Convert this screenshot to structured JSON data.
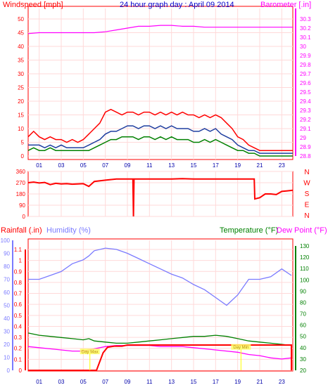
{
  "chart_data": [
    {
      "type": "line",
      "title": "24 hour graph day : April 09 2014",
      "left_axis_label": "Windspeed [mph]",
      "right_axis_label": "Barometer [.in]",
      "x_ticks": [
        "01",
        "03",
        "05",
        "07",
        "09",
        "11",
        "13",
        "15",
        "17",
        "19",
        "21",
        "23"
      ],
      "left_ticks": [
        "0",
        "5",
        "10",
        "15",
        "20",
        "25",
        "30",
        "35",
        "40",
        "45",
        "50"
      ],
      "right_ticks": [
        "28.8",
        "28.9",
        "29",
        "29.1",
        "29.2",
        "29.3",
        "29.4",
        "29.5",
        "29.6",
        "29.7",
        "29.8",
        "29.9",
        "30",
        "30.1",
        "30.2",
        "30.3"
      ],
      "xlim": [
        0,
        24
      ],
      "ylim_left": [
        0,
        50
      ],
      "ylim_right": [
        28.8,
        30.3
      ],
      "series": [
        {
          "color": "#ff0000",
          "axis": "left",
          "x": [
            0,
            0.5,
            1,
            1.5,
            2,
            2.5,
            3,
            3.5,
            4,
            4.5,
            5,
            5.5,
            6,
            6.5,
            7,
            7.5,
            8,
            8.5,
            9,
            9.5,
            10,
            10.5,
            11,
            11.5,
            12,
            12.5,
            13,
            13.5,
            14,
            14.5,
            15,
            15.5,
            16,
            16.5,
            17,
            17.5,
            18,
            18.5,
            19,
            19.5,
            20,
            20.5,
            21,
            21.5,
            22,
            22.5,
            23,
            23.5,
            24
          ],
          "values": [
            7,
            9,
            7,
            6,
            7,
            6,
            6,
            5,
            6,
            5,
            6,
            8,
            10,
            12,
            16,
            17,
            16,
            15,
            16,
            16,
            15,
            16,
            16,
            15,
            16,
            15,
            16,
            15,
            16,
            15,
            15,
            14,
            15,
            14,
            15,
            14,
            12,
            10,
            7,
            6,
            4,
            3,
            2,
            2,
            2,
            2,
            2,
            2,
            2
          ]
        },
        {
          "color": "#1f3fa0",
          "axis": "left",
          "x": [
            0,
            0.5,
            1,
            1.5,
            2,
            2.5,
            3,
            3.5,
            4,
            4.5,
            5,
            5.5,
            6,
            6.5,
            7,
            7.5,
            8,
            8.5,
            9,
            9.5,
            10,
            10.5,
            11,
            11.5,
            12,
            12.5,
            13,
            13.5,
            14,
            14.5,
            15,
            15.5,
            16,
            16.5,
            17,
            17.5,
            18,
            18.5,
            19,
            19.5,
            20,
            20.5,
            21,
            21.5,
            22,
            22.5,
            23,
            23.5,
            24
          ],
          "values": [
            4,
            4,
            4,
            3,
            4,
            3,
            4,
            3,
            3,
            3,
            3,
            4,
            5,
            6,
            8,
            9,
            9,
            10,
            11,
            11,
            10,
            11,
            11,
            10,
            11,
            10,
            11,
            10,
            10,
            10,
            9,
            9,
            10,
            9,
            10,
            8,
            7,
            6,
            4,
            3,
            2,
            2,
            1,
            1,
            1,
            1,
            1,
            1,
            1
          ]
        },
        {
          "color": "#008000",
          "axis": "left",
          "x": [
            0,
            0.5,
            1,
            1.5,
            2,
            2.5,
            3,
            3.5,
            4,
            4.5,
            5,
            5.5,
            6,
            6.5,
            7,
            7.5,
            8,
            8.5,
            9,
            9.5,
            10,
            10.5,
            11,
            11.5,
            12,
            12.5,
            13,
            13.5,
            14,
            14.5,
            15,
            15.5,
            16,
            16.5,
            17,
            17.5,
            18,
            18.5,
            19,
            19.5,
            20,
            20.5,
            21,
            21.5,
            22,
            22.5,
            23,
            23.5,
            24
          ],
          "values": [
            2,
            3,
            2,
            2,
            3,
            2,
            2,
            2,
            2,
            2,
            2,
            2,
            3,
            4,
            5,
            6,
            6,
            7,
            7,
            7,
            6,
            7,
            7,
            6,
            7,
            6,
            7,
            6,
            6,
            6,
            5,
            5,
            6,
            5,
            6,
            5,
            4,
            3,
            2,
            2,
            1,
            1,
            0,
            0,
            0,
            0,
            0,
            0,
            0
          ]
        },
        {
          "color": "#ff00ff",
          "axis": "right",
          "x": [
            0,
            1,
            2,
            3,
            4,
            5,
            6,
            7,
            8,
            9,
            10,
            11,
            12,
            13,
            14,
            15,
            16,
            17,
            18,
            19,
            20,
            21,
            22,
            23,
            24
          ],
          "values": [
            30.14,
            30.15,
            30.15,
            30.15,
            30.15,
            30.15,
            30.15,
            30.16,
            30.18,
            30.2,
            30.22,
            30.22,
            30.23,
            30.23,
            30.22,
            30.22,
            30.21,
            30.21,
            30.21,
            30.21,
            30.21,
            30.21,
            30.21,
            30.21,
            30.21
          ]
        }
      ]
    },
    {
      "type": "line",
      "left_ticks": [
        "360",
        "270",
        "180",
        "90",
        "0"
      ],
      "right_ticks": [
        "N",
        "W",
        "S",
        "E",
        "N"
      ],
      "xlim": [
        0,
        24
      ],
      "ylim_left": [
        0,
        360
      ],
      "series": [
        {
          "color": "#ff0000",
          "x": [
            0,
            0.5,
            1,
            1.5,
            2,
            2.5,
            3,
            3.5,
            4,
            4.5,
            5,
            5.5,
            6,
            7,
            8,
            9,
            9.5,
            9.55,
            9.6,
            10,
            11,
            12,
            13,
            14,
            15,
            16,
            17,
            18,
            19,
            20,
            20.5,
            20.55,
            21,
            21.5,
            22,
            22.5,
            23,
            23.5,
            24
          ],
          "values": [
            270,
            275,
            268,
            272,
            255,
            265,
            260,
            262,
            258,
            260,
            262,
            240,
            280,
            290,
            300,
            300,
            300,
            0,
            300,
            300,
            300,
            300,
            300,
            302,
            300,
            300,
            300,
            300,
            300,
            300,
            300,
            140,
            150,
            180,
            180,
            175,
            200,
            205,
            210
          ]
        }
      ]
    },
    {
      "type": "line",
      "left_axis_label": "Rainfall (.in)",
      "center_axis_label": "Humidity (%)",
      "right_axis_label_1": "Temperature (°F)",
      "right_axis_label_2": "Dew Point (°F)",
      "x_ticks": [
        "01",
        "03",
        "05",
        "07",
        "09",
        "11",
        "13",
        "15",
        "17",
        "19",
        "21",
        "23"
      ],
      "rain_ticks": [
        "0",
        "0.1",
        "0.2",
        "0.3",
        "0.4",
        "0.5",
        "0.6",
        "0.7",
        "0.8",
        "0.9",
        "1",
        "1.1"
      ],
      "humidity_ticks": [
        "0",
        "10",
        "20",
        "30",
        "40",
        "50",
        "60",
        "70",
        "80",
        "90",
        "100"
      ],
      "temp_ticks": [
        "20",
        "30",
        "40",
        "50",
        "60",
        "70",
        "80",
        "90",
        "100",
        "110",
        "120",
        "130"
      ],
      "xlim": [
        0,
        24
      ],
      "ylim_rain": [
        0,
        1.1
      ],
      "ylim_humidity": [
        0,
        100
      ],
      "ylim_temp": [
        20,
        130
      ],
      "annotations": [
        {
          "text": "Day Max",
          "x": 5.6,
          "y_temp": 33
        },
        {
          "text": "Day Min",
          "x": 19.3,
          "y_temp": 37
        }
      ],
      "series": [
        {
          "color": "#7b7bff",
          "axis": "humidity",
          "x": [
            0,
            1,
            2,
            3,
            4,
            5,
            5.5,
            6,
            7,
            8,
            9,
            10,
            11,
            12,
            13,
            14,
            15,
            16,
            17,
            18,
            19,
            20,
            21,
            22,
            23,
            24
          ],
          "values": [
            70,
            70,
            73,
            76,
            82,
            85,
            88,
            92,
            94,
            93,
            90,
            86,
            82,
            78,
            74,
            71,
            66,
            62,
            56,
            50,
            58,
            70,
            70,
            72,
            78,
            73
          ]
        },
        {
          "color": "#008000",
          "axis": "temp",
          "x": [
            0,
            0.5,
            1,
            2,
            3,
            4,
            5,
            5.5,
            6,
            7,
            8,
            9,
            10,
            11,
            12,
            13,
            14,
            15,
            16,
            17,
            18,
            19,
            20,
            21,
            22,
            23,
            24
          ],
          "values": [
            53,
            52,
            51,
            50,
            49,
            48,
            47,
            48,
            46,
            45,
            44,
            44,
            45,
            46,
            47,
            48,
            49,
            50,
            50,
            51,
            50,
            48,
            46,
            45,
            44,
            43,
            42
          ]
        },
        {
          "color": "#ff00ff",
          "axis": "temp",
          "x": [
            0,
            1,
            2,
            3,
            4,
            5,
            6,
            7,
            8,
            9,
            10,
            11,
            12,
            13,
            14,
            15,
            16,
            17,
            18,
            19,
            20,
            21,
            22,
            23,
            24
          ],
          "values": [
            41,
            40,
            39,
            38,
            37,
            37,
            39,
            41,
            42,
            42,
            42,
            42,
            41,
            41,
            41,
            40,
            39,
            38,
            37,
            36,
            34,
            33,
            31,
            30,
            31
          ]
        },
        {
          "color": "#ff0000",
          "axis": "rain",
          "x": [
            0,
            5.5,
            6.2,
            6.5,
            6.8,
            7.2,
            7.8,
            8.5,
            9,
            24,
            24.02,
            24.05
          ],
          "values": [
            0,
            0,
            0,
            0.08,
            0.16,
            0.21,
            0.22,
            0.22,
            0.23,
            0.23,
            0,
            0
          ]
        }
      ]
    }
  ]
}
